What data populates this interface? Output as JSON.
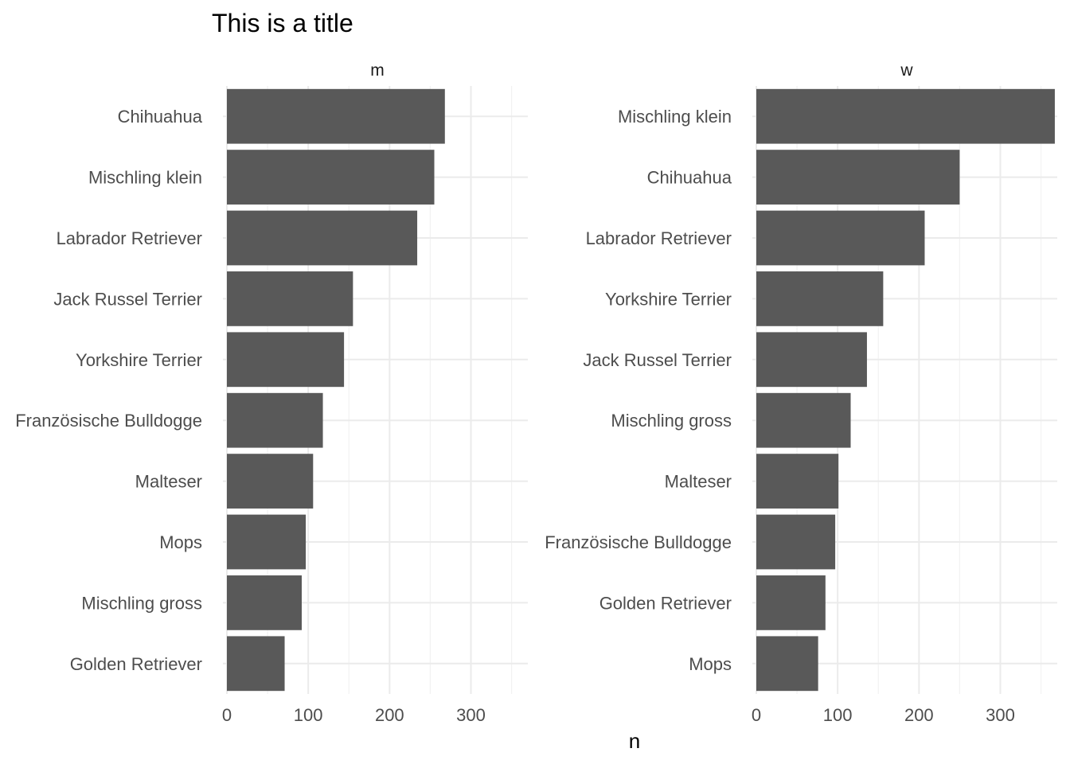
{
  "chart_data": {
    "type": "bar",
    "orientation": "horizontal",
    "title": "This is a title",
    "xlabel": "n",
    "ylabel": "",
    "xlim": [
      0,
      370
    ],
    "xticks": [
      0,
      100,
      200,
      300
    ],
    "grid": true,
    "panels": [
      {
        "strip": "m",
        "categories": [
          "Chihuahua",
          "Mischling klein",
          "Labrador Retriever",
          "Jack Russel Terrier",
          "Yorkshire Terrier",
          "Französische Bulldogge",
          "Malteser",
          "Mops",
          "Mischling gross",
          "Golden Retriever"
        ],
        "values": [
          268,
          255,
          234,
          155,
          144,
          118,
          106,
          97,
          92,
          71
        ]
      },
      {
        "strip": "w",
        "categories": [
          "Mischling klein",
          "Chihuahua",
          "Labrador Retriever",
          "Yorkshire Terrier",
          "Jack Russel Terrier",
          "Mischling gross",
          "Malteser",
          "Französische Bulldogge",
          "Golden Retriever",
          "Mops"
        ],
        "values": [
          367,
          250,
          207,
          156,
          136,
          116,
          101,
          97,
          85,
          76
        ]
      }
    ],
    "bar_color": "#595959"
  }
}
